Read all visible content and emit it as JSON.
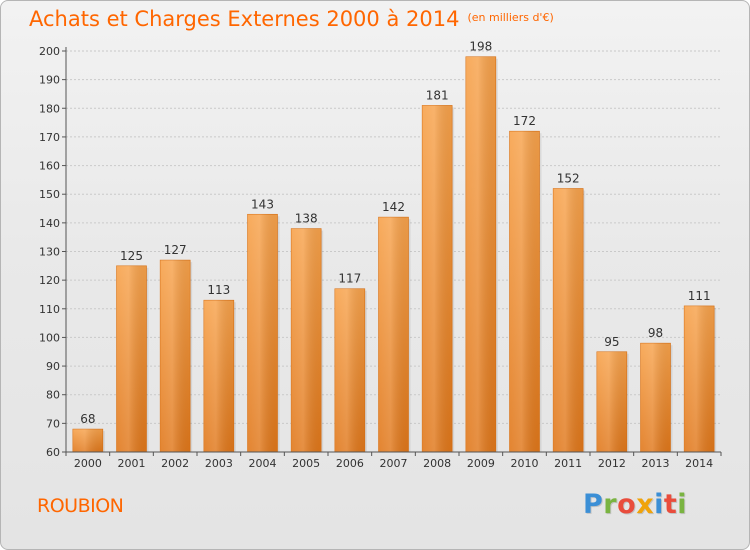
{
  "title": "Achats et Charges Externes 2000 à 2014",
  "unit_note": "(en milliers d'€)",
  "commune": "ROUBION",
  "logo": {
    "letters": [
      "P",
      "r",
      "o",
      "x",
      "i",
      "t",
      "i"
    ],
    "colors": [
      "#3b8fd6",
      "#7ab441",
      "#e94c3c",
      "#f0a30a",
      "#3b8fd6",
      "#e94c3c",
      "#7ab441"
    ]
  },
  "chart_data": {
    "type": "bar",
    "categories": [
      "2000",
      "2001",
      "2002",
      "2003",
      "2004",
      "2005",
      "2006",
      "2007",
      "2008",
      "2009",
      "2010",
      "2011",
      "2012",
      "2013",
      "2014"
    ],
    "values": [
      68,
      125,
      127,
      113,
      143,
      138,
      117,
      142,
      181,
      198,
      172,
      152,
      95,
      98,
      111
    ],
    "ylim": [
      60,
      200
    ],
    "yticks": [
      60,
      70,
      80,
      90,
      100,
      110,
      120,
      130,
      140,
      150,
      160,
      170,
      180,
      190,
      200
    ],
    "grid": true,
    "bar_color_top": "#f7a24b",
    "bar_color_bottom": "#e0771a"
  }
}
